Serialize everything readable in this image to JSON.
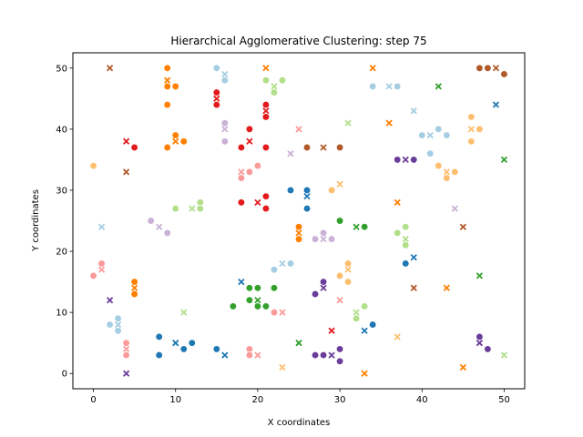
{
  "chart_data": {
    "type": "scatter",
    "title": "Hierarchical Agglomerative Clustering: step 75",
    "xlabel": "X coordinates",
    "ylabel": "Y coordinates",
    "xlim": [
      -2.5,
      52.5
    ],
    "ylim": [
      -2.5,
      52.5
    ],
    "xticks": [
      0,
      10,
      20,
      30,
      40,
      50
    ],
    "yticks": [
      0,
      10,
      20,
      30,
      40,
      50
    ],
    "grid": false,
    "marker_legend": {
      "o": "point",
      "x": "cluster centroid"
    },
    "series": [
      {
        "color": "#a6cee3",
        "points": [
          [
            15,
            50,
            "o"
          ],
          [
            16,
            49,
            "x"
          ],
          [
            16,
            48,
            "o"
          ],
          [
            34,
            47,
            "o"
          ],
          [
            36,
            47,
            "x"
          ],
          [
            37,
            47,
            "o"
          ],
          [
            39,
            43,
            "x"
          ],
          [
            42,
            40,
            "o"
          ],
          [
            40,
            39,
            "o"
          ],
          [
            41,
            39,
            "x"
          ],
          [
            43,
            39,
            "o"
          ],
          [
            41,
            36,
            "o"
          ],
          [
            1,
            24,
            "x"
          ],
          [
            22,
            17,
            "o"
          ],
          [
            23,
            18,
            "x"
          ],
          [
            24,
            18,
            "o"
          ],
          [
            3,
            9,
            "o"
          ],
          [
            2,
            8,
            "o"
          ],
          [
            3,
            8,
            "x"
          ],
          [
            3,
            7,
            "o"
          ]
        ]
      },
      {
        "color": "#1f78b4",
        "points": [
          [
            49,
            44,
            "x"
          ],
          [
            24,
            30,
            "o"
          ],
          [
            26,
            30,
            "o"
          ],
          [
            26,
            29,
            "x"
          ],
          [
            26,
            27,
            "o"
          ],
          [
            38,
            18,
            "o"
          ],
          [
            39,
            19,
            "x"
          ],
          [
            18,
            15,
            "x"
          ],
          [
            34,
            8,
            "o"
          ],
          [
            33,
            7,
            "x"
          ],
          [
            8,
            6,
            "o"
          ],
          [
            10,
            5,
            "x"
          ],
          [
            12,
            5,
            "o"
          ],
          [
            11,
            4,
            "o"
          ],
          [
            15,
            4,
            "o"
          ],
          [
            16,
            3,
            "x"
          ],
          [
            8,
            3,
            "o"
          ]
        ]
      },
      {
        "color": "#b2df8a",
        "points": [
          [
            21,
            48,
            "o"
          ],
          [
            22,
            47,
            "x"
          ],
          [
            23,
            48,
            "o"
          ],
          [
            22,
            46,
            "o"
          ],
          [
            31,
            41,
            "x"
          ],
          [
            10,
            27,
            "o"
          ],
          [
            13,
            28,
            "o"
          ],
          [
            12,
            27,
            "x"
          ],
          [
            13,
            27,
            "o"
          ],
          [
            38,
            24,
            "o"
          ],
          [
            37,
            23,
            "o"
          ],
          [
            38,
            22,
            "x"
          ],
          [
            38,
            21,
            "o"
          ],
          [
            11,
            10,
            "x"
          ],
          [
            33,
            11,
            "o"
          ],
          [
            32,
            10,
            "x"
          ],
          [
            32,
            9,
            "o"
          ],
          [
            50,
            3,
            "x"
          ]
        ]
      },
      {
        "color": "#33a02c",
        "points": [
          [
            42,
            47,
            "x"
          ],
          [
            50,
            35,
            "x"
          ],
          [
            30,
            25,
            "o"
          ],
          [
            32,
            24,
            "x"
          ],
          [
            33,
            24,
            "o"
          ],
          [
            47,
            16,
            "x"
          ],
          [
            19,
            14,
            "o"
          ],
          [
            20,
            14,
            "o"
          ],
          [
            22,
            14,
            "o"
          ],
          [
            19,
            12,
            "o"
          ],
          [
            20,
            12,
            "x"
          ],
          [
            21,
            11,
            "o"
          ],
          [
            20,
            11,
            "o"
          ],
          [
            17,
            11,
            "o"
          ],
          [
            25,
            5,
            "x"
          ]
        ]
      },
      {
        "color": "#fb9a99",
        "points": [
          [
            25,
            40,
            "x"
          ],
          [
            20,
            34,
            "o"
          ],
          [
            18,
            33,
            "x"
          ],
          [
            19,
            33,
            "o"
          ],
          [
            18,
            32,
            "o"
          ],
          [
            1,
            18,
            "o"
          ],
          [
            1,
            17,
            "x"
          ],
          [
            0,
            16,
            "o"
          ],
          [
            22,
            10,
            "o"
          ],
          [
            23,
            10,
            "x"
          ],
          [
            30,
            12,
            "x"
          ],
          [
            4,
            5,
            "o"
          ],
          [
            4,
            4,
            "x"
          ],
          [
            4,
            3,
            "o"
          ],
          [
            19,
            4,
            "o"
          ],
          [
            19,
            3,
            "o"
          ],
          [
            20,
            3,
            "x"
          ]
        ]
      },
      {
        "color": "#e31a1c",
        "points": [
          [
            15,
            46,
            "o"
          ],
          [
            15,
            45,
            "x"
          ],
          [
            15,
            44,
            "o"
          ],
          [
            21,
            44,
            "o"
          ],
          [
            21,
            43,
            "x"
          ],
          [
            21,
            42,
            "o"
          ],
          [
            19,
            40,
            "o"
          ],
          [
            4,
            38,
            "x"
          ],
          [
            5,
            37,
            "o"
          ],
          [
            19,
            38,
            "x"
          ],
          [
            18,
            37,
            "o"
          ],
          [
            21,
            37,
            "o"
          ],
          [
            21,
            29,
            "o"
          ],
          [
            18,
            28,
            "o"
          ],
          [
            20,
            28,
            "x"
          ],
          [
            21,
            27,
            "o"
          ],
          [
            29,
            7,
            "x"
          ]
        ]
      },
      {
        "color": "#fdbf6f",
        "points": [
          [
            46,
            42,
            "o"
          ],
          [
            46,
            40,
            "x"
          ],
          [
            47,
            40,
            "o"
          ],
          [
            46,
            38,
            "o"
          ],
          [
            0,
            34,
            "o"
          ],
          [
            42,
            34,
            "o"
          ],
          [
            43,
            33,
            "x"
          ],
          [
            44,
            33,
            "o"
          ],
          [
            43,
            32,
            "o"
          ],
          [
            30,
            31,
            "x"
          ],
          [
            29,
            30,
            "o"
          ],
          [
            31,
            18,
            "o"
          ],
          [
            30,
            16,
            "o"
          ],
          [
            31,
            17,
            "x"
          ],
          [
            31,
            15,
            "o"
          ],
          [
            37,
            6,
            "x"
          ],
          [
            23,
            1,
            "x"
          ]
        ]
      },
      {
        "color": "#ff7f00",
        "points": [
          [
            9,
            50,
            "o"
          ],
          [
            21,
            50,
            "x"
          ],
          [
            34,
            50,
            "x"
          ],
          [
            9,
            48,
            "x"
          ],
          [
            9,
            47,
            "o"
          ],
          [
            10,
            47,
            "o"
          ],
          [
            9,
            44,
            "o"
          ],
          [
            36,
            41,
            "x"
          ],
          [
            10,
            39,
            "o"
          ],
          [
            10,
            38,
            "x"
          ],
          [
            11,
            38,
            "o"
          ],
          [
            9,
            37,
            "o"
          ],
          [
            37,
            28,
            "x"
          ],
          [
            25,
            24,
            "o"
          ],
          [
            25,
            23,
            "x"
          ],
          [
            25,
            22,
            "o"
          ],
          [
            5,
            15,
            "o"
          ],
          [
            5,
            14,
            "x"
          ],
          [
            5,
            13,
            "o"
          ],
          [
            43,
            14,
            "x"
          ],
          [
            45,
            1,
            "x"
          ],
          [
            33,
            0,
            "x"
          ]
        ]
      },
      {
        "color": "#cab2d6",
        "points": [
          [
            16,
            41,
            "o"
          ],
          [
            16,
            40,
            "x"
          ],
          [
            16,
            38,
            "o"
          ],
          [
            24,
            36,
            "x"
          ],
          [
            7,
            25,
            "o"
          ],
          [
            8,
            24,
            "x"
          ],
          [
            9,
            23,
            "o"
          ],
          [
            44,
            27,
            "x"
          ],
          [
            28,
            23,
            "o"
          ],
          [
            28,
            22,
            "x"
          ],
          [
            29,
            22,
            "o"
          ],
          [
            27,
            22,
            "o"
          ]
        ]
      },
      {
        "color": "#6a3d9a",
        "points": [
          [
            37,
            35,
            "o"
          ],
          [
            38,
            35,
            "x"
          ],
          [
            39,
            35,
            "o"
          ],
          [
            28,
            15,
            "o"
          ],
          [
            28,
            14,
            "x"
          ],
          [
            27,
            13,
            "o"
          ],
          [
            2,
            12,
            "x"
          ],
          [
            47,
            6,
            "o"
          ],
          [
            47,
            5,
            "x"
          ],
          [
            48,
            4,
            "o"
          ],
          [
            30,
            4,
            "o"
          ],
          [
            27,
            3,
            "o"
          ],
          [
            28,
            3,
            "o"
          ],
          [
            29,
            3,
            "x"
          ],
          [
            30,
            2,
            "o"
          ],
          [
            4,
            0,
            "x"
          ]
        ]
      },
      {
        "color": "#b15928",
        "points": [
          [
            2,
            50,
            "x"
          ],
          [
            47,
            50,
            "o"
          ],
          [
            48,
            50,
            "o"
          ],
          [
            49,
            50,
            "x"
          ],
          [
            50,
            49,
            "o"
          ],
          [
            26,
            37,
            "o"
          ],
          [
            28,
            37,
            "x"
          ],
          [
            30,
            37,
            "o"
          ],
          [
            4,
            33,
            "x"
          ],
          [
            45,
            24,
            "x"
          ],
          [
            39,
            14,
            "x"
          ]
        ]
      }
    ]
  }
}
